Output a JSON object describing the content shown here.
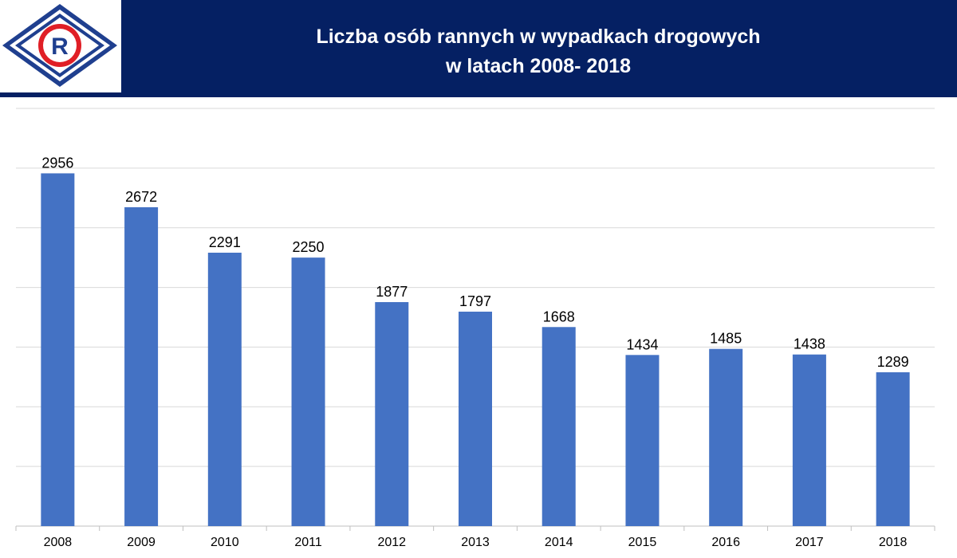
{
  "header": {
    "title_line1": "Liczba osób rannych w wypadkach drogowych",
    "title_line2": "w latach 2008- 2018",
    "logo_letter": "R",
    "background_color": "#052063"
  },
  "chart_data": {
    "type": "bar",
    "title": "Liczba osób rannych w wypadkach drogowych w latach 2008- 2018",
    "xlabel": "",
    "ylabel": "",
    "categories": [
      "2008",
      "2009",
      "2010",
      "2011",
      "2012",
      "2013",
      "2014",
      "2015",
      "2016",
      "2017",
      "2018"
    ],
    "values": [
      2956,
      2672,
      2291,
      2250,
      1877,
      1797,
      1668,
      1434,
      1485,
      1438,
      1289
    ],
    "ylim": [
      0,
      3500
    ],
    "grid": true,
    "bar_color": "#4472C4",
    "legend": false
  }
}
